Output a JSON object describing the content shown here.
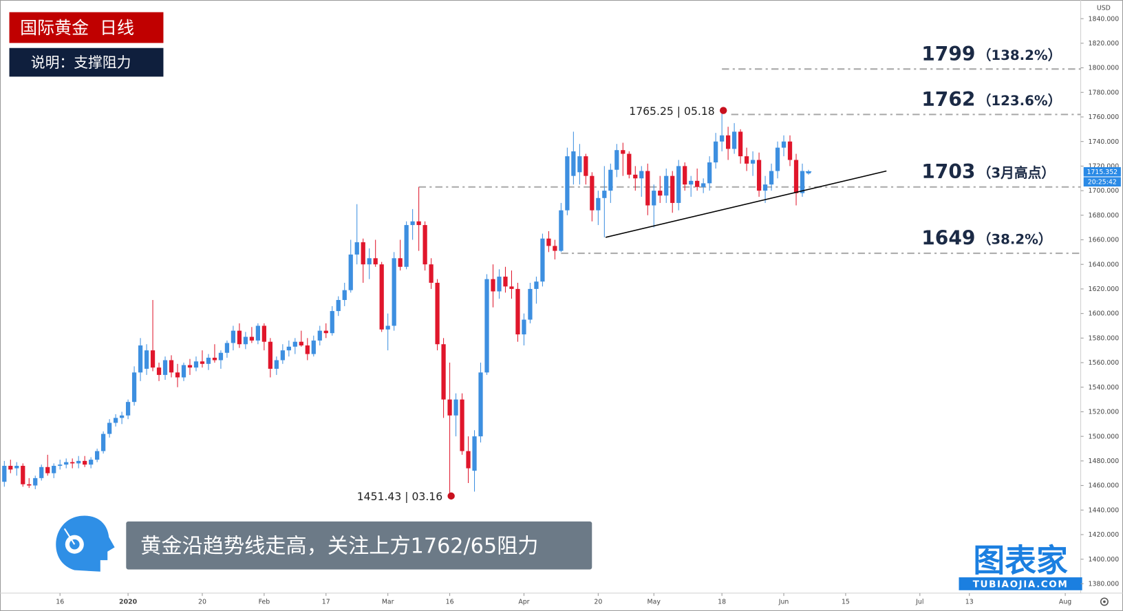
{
  "header": {
    "title": "国际黄金  日线",
    "subtitle": "说明：支撑阻力"
  },
  "caption": "黄金沿趋势线走高，关注上方1762/65阻力",
  "logo": {
    "name": "图表家",
    "url": "TUBIAOJIA.COM"
  },
  "chart_data": {
    "type": "candlestick",
    "currency": "USD",
    "colors": {
      "up": "#3d8fe0",
      "down": "#e0162b"
    },
    "open": [
      1463,
      1476,
      1474,
      1476,
      1461,
      1460,
      1466,
      1475,
      1470,
      1476,
      1477,
      1479,
      1478,
      1480,
      1477,
      1481,
      1488,
      1502,
      1511,
      1515,
      1517,
      1528,
      1552,
      1555,
      1570,
      1556,
      1550,
      1562,
      1552,
      1548,
      1558,
      1556,
      1561,
      1559,
      1564,
      1562,
      1568,
      1576,
      1586,
      1575,
      1581,
      1578,
      1590,
      1577,
      1555,
      1562,
      1570,
      1573,
      1577,
      1574,
      1567,
      1578,
      1586,
      1584,
      1602,
      1611,
      1619,
      1648,
      1658,
      1640,
      1645,
      1640,
      1587,
      1590,
      1645,
      1638,
      1672,
      1675,
      1672,
      1640,
      1625,
      1575,
      1530,
      1517,
      1530,
      1488,
      1472,
      1500,
      1552,
      1628,
      1618,
      1630,
      1622,
      1620,
      1583,
      1595,
      1620,
      1626,
      1661,
      1655,
      1651,
      1684,
      1712,
      1715,
      1728,
      1712,
      1684,
      1694,
      1700,
      1717,
      1733,
      1730,
      1713,
      1710,
      1716,
      1688,
      1700,
      1696,
      1712,
      1690,
      1720,
      1705,
      1708,
      1703,
      1706,
      1723,
      1740,
      1745,
      1734,
      1748,
      1728,
      1722,
      1725,
      1700,
      1705,
      1716,
      1735,
      1740,
      1725,
      1698,
      1714
    ],
    "high": [
      1480,
      1481,
      1479,
      1478,
      1466,
      1468,
      1477,
      1485,
      1478,
      1481,
      1482,
      1482,
      1484,
      1484,
      1483,
      1490,
      1504,
      1514,
      1518,
      1520,
      1530,
      1557,
      1580,
      1575,
      1611,
      1560,
      1565,
      1566,
      1559,
      1560,
      1563,
      1565,
      1570,
      1567,
      1575,
      1570,
      1578,
      1590,
      1592,
      1585,
      1589,
      1592,
      1592,
      1580,
      1565,
      1575,
      1578,
      1580,
      1586,
      1580,
      1582,
      1590,
      1592,
      1606,
      1614,
      1625,
      1660,
      1689,
      1661,
      1653,
      1660,
      1642,
      1600,
      1650,
      1660,
      1675,
      1685,
      1703,
      1675,
      1645,
      1628,
      1580,
      1560,
      1535,
      1535,
      1500,
      1505,
      1560,
      1632,
      1640,
      1636,
      1638,
      1635,
      1625,
      1600,
      1625,
      1630,
      1665,
      1667,
      1660,
      1690,
      1735,
      1748,
      1738,
      1730,
      1715,
      1700,
      1720,
      1722,
      1738,
      1739,
      1732,
      1720,
      1720,
      1722,
      1705,
      1712,
      1718,
      1716,
      1725,
      1723,
      1712,
      1718,
      1710,
      1728,
      1747,
      1765.25,
      1752,
      1755,
      1750,
      1735,
      1732,
      1731,
      1712,
      1722,
      1740,
      1745,
      1745,
      1730,
      1722,
      1717
    ],
    "low": [
      1459,
      1470,
      1468,
      1459,
      1458,
      1457,
      1464,
      1468,
      1466,
      1473,
      1474,
      1474,
      1474,
      1475,
      1474,
      1479,
      1486,
      1499,
      1508,
      1510,
      1514,
      1525,
      1545,
      1550,
      1553,
      1545,
      1546,
      1548,
      1540,
      1545,
      1550,
      1553,
      1556,
      1554,
      1560,
      1555,
      1564,
      1570,
      1572,
      1571,
      1576,
      1575,
      1570,
      1548,
      1550,
      1559,
      1565,
      1567,
      1573,
      1562,
      1565,
      1574,
      1580,
      1582,
      1598,
      1606,
      1617,
      1640,
      1625,
      1628,
      1638,
      1585,
      1570,
      1586,
      1635,
      1636,
      1660,
      1651,
      1635,
      1620,
      1570,
      1515,
      1451.43,
      1500,
      1485,
      1462,
      1455,
      1495,
      1550,
      1605,
      1612,
      1617,
      1612,
      1577,
      1574,
      1592,
      1608,
      1622,
      1650,
      1644,
      1650,
      1680,
      1705,
      1705,
      1705,
      1675,
      1672,
      1662,
      1690,
      1711,
      1712,
      1710,
      1700,
      1695,
      1680,
      1670,
      1690,
      1690,
      1682,
      1684,
      1700,
      1695,
      1700,
      1698,
      1700,
      1718,
      1732,
      1725,
      1730,
      1722,
      1716,
      1712,
      1695,
      1690,
      1700,
      1710,
      1728,
      1720,
      1688,
      1695,
      1713
    ],
    "close": [
      1476,
      1473,
      1476,
      1461,
      1460,
      1466,
      1475,
      1470,
      1476,
      1477,
      1479,
      1478,
      1480,
      1477,
      1481,
      1488,
      1502,
      1511,
      1515,
      1517,
      1528,
      1552,
      1574,
      1570,
      1556,
      1550,
      1562,
      1552,
      1548,
      1558,
      1556,
      1561,
      1559,
      1564,
      1562,
      1568,
      1576,
      1586,
      1575,
      1581,
      1578,
      1590,
      1577,
      1555,
      1562,
      1570,
      1573,
      1577,
      1574,
      1567,
      1578,
      1586,
      1584,
      1602,
      1611,
      1619,
      1648,
      1658,
      1640,
      1645,
      1640,
      1587,
      1590,
      1645,
      1638,
      1672,
      1675,
      1672,
      1640,
      1625,
      1575,
      1530,
      1517,
      1530,
      1488,
      1474,
      1500,
      1552,
      1628,
      1618,
      1630,
      1622,
      1620,
      1583,
      1595,
      1620,
      1626,
      1661,
      1655,
      1651,
      1684,
      1728,
      1732,
      1728,
      1712,
      1684,
      1694,
      1700,
      1717,
      1733,
      1730,
      1713,
      1710,
      1716,
      1688,
      1700,
      1696,
      1712,
      1690,
      1720,
      1705,
      1708,
      1703,
      1706,
      1723,
      1740,
      1745,
      1734,
      1748,
      1728,
      1722,
      1725,
      1700,
      1705,
      1716,
      1735,
      1740,
      1725,
      1698,
      1716,
      1715.352
    ],
    "ylim": [
      1372.4,
      1855.2
    ],
    "yticks": [
      {
        "value": 1380,
        "label": "1380.000"
      },
      {
        "value": 1400,
        "label": "1400.000"
      },
      {
        "value": 1420,
        "label": "1420.000"
      },
      {
        "value": 1440,
        "label": "1440.000"
      },
      {
        "value": 1460,
        "label": "1460.000"
      },
      {
        "value": 1480,
        "label": "1480.000"
      },
      {
        "value": 1500,
        "label": "1500.000"
      },
      {
        "value": 1520,
        "label": "1520.000"
      },
      {
        "value": 1540,
        "label": "1540.000"
      },
      {
        "value": 1560,
        "label": "1560.000"
      },
      {
        "value": 1580,
        "label": "1580.000"
      },
      {
        "value": 1600,
        "label": "1600.000"
      },
      {
        "value": 1620,
        "label": "1620.000"
      },
      {
        "value": 1640,
        "label": "1640.000"
      },
      {
        "value": 1660,
        "label": "1660.000"
      },
      {
        "value": 1680,
        "label": "1680.000"
      },
      {
        "value": 1700,
        "label": "1700.000"
      },
      {
        "value": 1720,
        "label": "1720.000"
      },
      {
        "value": 1740,
        "label": "1740.000"
      },
      {
        "value": 1760,
        "label": "1760.000"
      },
      {
        "value": 1780,
        "label": "1780.000"
      },
      {
        "value": 1800,
        "label": "1800.000"
      },
      {
        "value": 1820,
        "label": "1820.000"
      },
      {
        "value": 1840,
        "label": "1840.000"
      }
    ],
    "xlim": [
      -0.7,
      174.0
    ],
    "xticks": [
      {
        "value": 9,
        "label": "16"
      },
      {
        "value": 20,
        "label": "2020"
      },
      {
        "value": 32,
        "label": "20"
      },
      {
        "value": 42,
        "label": "Feb"
      },
      {
        "value": 52,
        "label": "17"
      },
      {
        "value": 62,
        "label": "Mar"
      },
      {
        "value": 72,
        "label": "16"
      },
      {
        "value": 84,
        "label": "Apr"
      },
      {
        "value": 96,
        "label": "20"
      },
      {
        "value": 105,
        "label": "May"
      },
      {
        "value": 116,
        "label": "18"
      },
      {
        "value": 126,
        "label": "Jun"
      },
      {
        "value": 136,
        "label": "15"
      },
      {
        "value": 148,
        "label": "Jul"
      },
      {
        "value": 156,
        "label": "13"
      },
      {
        "value": 171.5,
        "label": "Aug"
      }
    ],
    "levels": [
      {
        "value": 1799,
        "note": "（138.2%）"
      },
      {
        "value": 1762,
        "note": "（123.6%）"
      },
      {
        "value": 1703,
        "note": "（3月高点）"
      },
      {
        "value": 1649,
        "note": "（38.2%）"
      }
    ],
    "trendline": {
      "x": [
        97.2,
        142.6
      ],
      "y": [
        1662,
        1716
      ]
    },
    "annotations": [
      {
        "x": 116,
        "value": 1765.25,
        "text": "1765.25 | 05.18"
      },
      {
        "x": 72,
        "value": 1451.43,
        "text": "1451.43 | 03.16"
      }
    ],
    "last_price": {
      "value": 1715.352,
      "countdown": "20:25:42"
    }
  }
}
